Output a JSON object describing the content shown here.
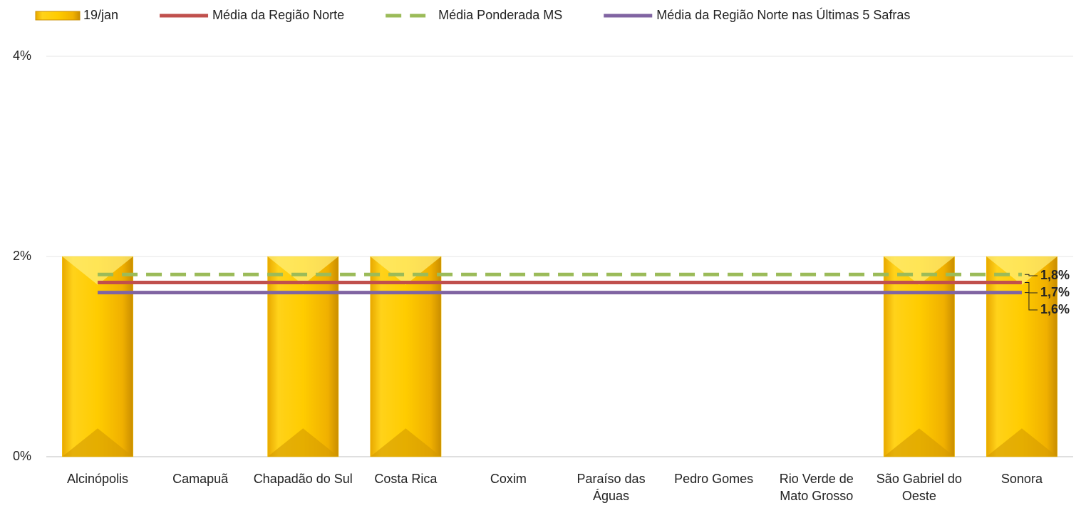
{
  "chart_data": {
    "type": "bar",
    "categories": [
      "Alcinópolis",
      "Camapuã",
      "Chapadão do Sul",
      "Costa Rica",
      "Coxim",
      "Paraíso das Águas",
      "Pedro Gomes",
      "Rio Verde de Mato Grosso",
      "São Gabriel do Oeste",
      "Sonora"
    ],
    "series": [
      {
        "name": "19/jan",
        "color": "#f5c400",
        "values": [
          2,
          0,
          2,
          2,
          0,
          0,
          0,
          0,
          2,
          2
        ]
      }
    ],
    "reference_lines": [
      {
        "name": "Média da Região Norte",
        "color": "#c0504d",
        "value": 1.74,
        "value_label": "1,7%",
        "dashed": false
      },
      {
        "name": "Média Ponderada MS",
        "color": "#9bbb59",
        "value": 1.82,
        "value_label": "1,8%",
        "dashed": true
      },
      {
        "name": "Média da Região Norte nas Últimas 5 Safras",
        "color": "#8064a2",
        "value": 1.64,
        "value_label": "1,6%",
        "dashed": false
      }
    ],
    "ylim": [
      0,
      4
    ],
    "yticks": [
      {
        "value": 0,
        "label": "0%"
      },
      {
        "value": 2,
        "label": "2%"
      },
      {
        "value": 4,
        "label": "4%"
      }
    ],
    "grid": true,
    "legend": "top"
  }
}
